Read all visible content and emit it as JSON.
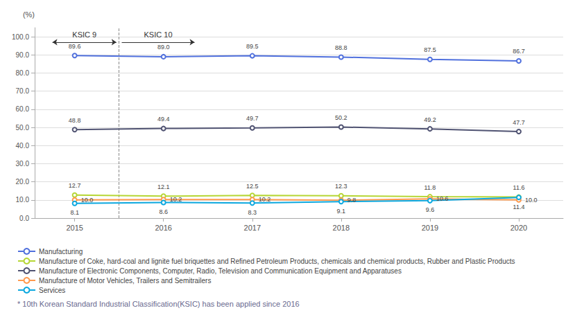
{
  "chart_data": {
    "type": "line",
    "x": [
      2015,
      2016,
      2017,
      2018,
      2019,
      2020
    ],
    "series": [
      {
        "name": "Manufacturing",
        "values": [
          89.6,
          89.0,
          89.5,
          88.8,
          87.5,
          86.7
        ],
        "value_labels": [
          "89.6",
          "89.0",
          "89.5",
          "88.8",
          "87.5",
          "86.7"
        ]
      },
      {
        "name": "Manufacture of Coke, hard-coal and lignite fuel briquettes and Refined Petroleum Products, chemicals and chemical products, Rubber and Plastic Products",
        "values": [
          12.7,
          12.1,
          12.5,
          12.3,
          11.8,
          11.6
        ],
        "value_labels": [
          "12.7",
          "12.1",
          "12.5",
          "12.3",
          "11.8",
          "11.6"
        ]
      },
      {
        "name": "Manufacture of Electronic Components, Computer, Radio, Television and Communication Equipment and Apparatuses",
        "values": [
          48.8,
          49.4,
          49.7,
          50.2,
          49.2,
          47.7
        ],
        "value_labels": [
          "48.8",
          "49.4",
          "49.7",
          "50.2",
          "49.2",
          "47.7"
        ]
      },
      {
        "name": "Manufacture of Motor Vehicles, Trailers and Semitrailers",
        "values": [
          10.0,
          10.2,
          10.2,
          9.8,
          10.6,
          10.0
        ],
        "value_labels": [
          "10.0",
          "10.2",
          "10.2",
          "9.8",
          "10.6",
          "10.0"
        ]
      },
      {
        "name": "Services",
        "values": [
          8.1,
          8.6,
          8.3,
          9.1,
          9.6,
          11.4
        ],
        "value_labels": [
          "8.1",
          "8.6",
          "8.3",
          "9.1",
          "9.6",
          "11.4"
        ]
      }
    ],
    "xlim": [
      2014.55,
      2020.5
    ],
    "xticks": [
      2015,
      2016,
      2017,
      2018,
      2019,
      2020
    ],
    "ylim": [
      0,
      105
    ],
    "yticks": [
      {
        "value": 0,
        "label": "0.0"
      },
      {
        "value": 10,
        "label": "10.0"
      },
      {
        "value": 20,
        "label": "20.0"
      },
      {
        "value": 30,
        "label": "30.0"
      },
      {
        "value": 40,
        "label": "40.0"
      },
      {
        "value": 50,
        "label": "50.0"
      },
      {
        "value": 60,
        "label": "60.0"
      },
      {
        "value": 70,
        "label": "70.0"
      },
      {
        "value": 80,
        "label": "80.0"
      },
      {
        "value": 90,
        "label": "90.0"
      },
      {
        "value": 100,
        "label": "100.0"
      }
    ],
    "ylabel": "(%)",
    "grid": true,
    "legend": "bottom",
    "data_labels": true,
    "marker": "circle",
    "vline": 2015.5,
    "annotations": [
      {
        "text": "KSIC 9"
      },
      {
        "text": "KSIC 10"
      }
    ],
    "footnote": "* 10th Korean Standard Industrial Classification(KSIC) has been applied since 2016"
  }
}
